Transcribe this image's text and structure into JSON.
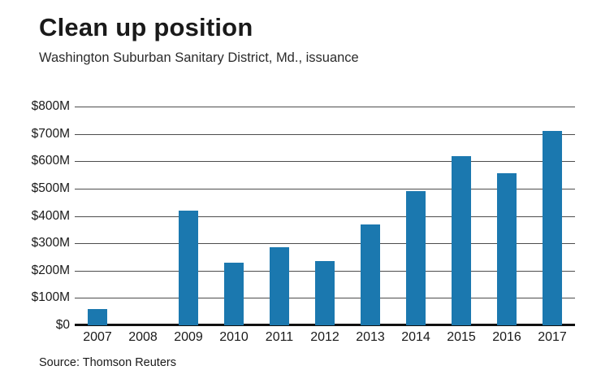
{
  "header": {
    "title": "Clean up position",
    "subtitle": "Washington Suburban Sanitary District, Md., issuance"
  },
  "source": "Source: Thomson Reuters",
  "chart_data": {
    "type": "bar",
    "title": "Clean up position",
    "subtitle": "Washington Suburban Sanitary District, Md., issuance",
    "categories": [
      "2007",
      "2008",
      "2009",
      "2010",
      "2011",
      "2012",
      "2013",
      "2014",
      "2015",
      "2016",
      "2017"
    ],
    "values": [
      60,
      0,
      420,
      230,
      285,
      235,
      370,
      490,
      620,
      555,
      710
    ],
    "xlabel": "",
    "ylabel": "",
    "ylim": [
      0,
      800
    ],
    "ytick_step": 100,
    "ytick_labels": [
      "$800M",
      "$700M",
      "$600M",
      "$500M",
      "$400M",
      "$300M",
      "$200M",
      "$100M",
      "$0"
    ],
    "bar_color": "#1b78af",
    "grid": true,
    "legend": "none",
    "source": "Source: Thomson Reuters"
  }
}
